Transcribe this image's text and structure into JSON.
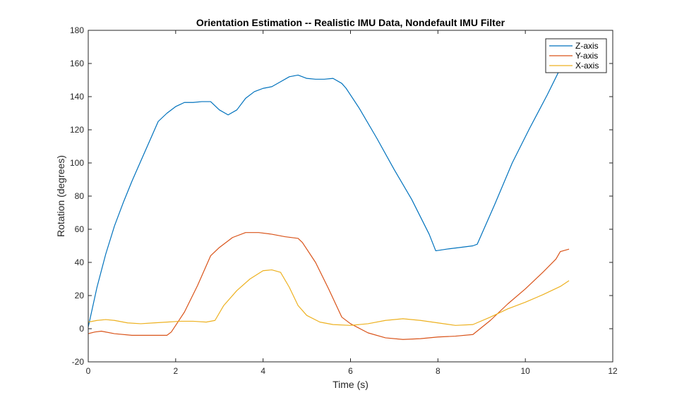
{
  "chart_data": {
    "type": "line",
    "title": "Orientation Estimation -- Realistic IMU Data, Nondefault IMU Filter",
    "xlabel": "Time (s)",
    "ylabel": "Rotation (degrees)",
    "xlim": [
      0,
      12
    ],
    "ylim": [
      -20,
      180
    ],
    "xticks": [
      0,
      2,
      4,
      6,
      8,
      10,
      12
    ],
    "yticks": [
      -20,
      0,
      20,
      40,
      60,
      80,
      100,
      120,
      140,
      160,
      180
    ],
    "grid": false,
    "legend_location": "top-right",
    "series": [
      {
        "name": "Z-axis",
        "color": "#0072BD",
        "x": [
          0,
          0.2,
          0.4,
          0.6,
          0.8,
          1.0,
          1.2,
          1.4,
          1.6,
          1.8,
          2.0,
          2.2,
          2.4,
          2.6,
          2.8,
          3.0,
          3.2,
          3.4,
          3.6,
          3.8,
          4.0,
          4.2,
          4.4,
          4.6,
          4.8,
          5.0,
          5.2,
          5.4,
          5.6,
          5.8,
          5.9,
          6.2,
          6.6,
          7.0,
          7.4,
          7.8,
          7.95,
          8.2,
          8.5,
          8.8,
          8.9,
          9.3,
          9.7,
          10.1,
          10.5,
          10.8,
          11.0
        ],
        "values": [
          1,
          25,
          45,
          62,
          76,
          89,
          101,
          113,
          125,
          130,
          134,
          136.5,
          136.5,
          137,
          137,
          132,
          129,
          132,
          139,
          143,
          145,
          146,
          149,
          152,
          153,
          151,
          150.5,
          150.5,
          151,
          148,
          145,
          133,
          115,
          96,
          78,
          57,
          47,
          48,
          49,
          50,
          51,
          75,
          100,
          121,
          141,
          157,
          164
        ]
      },
      {
        "name": "Y-axis",
        "color": "#D95319",
        "x": [
          0,
          0.15,
          0.3,
          0.6,
          1.0,
          1.4,
          1.8,
          1.9,
          2.2,
          2.5,
          2.8,
          3.0,
          3.3,
          3.6,
          3.9,
          4.2,
          4.5,
          4.8,
          4.9,
          5.2,
          5.5,
          5.8,
          6.0,
          6.4,
          6.8,
          7.2,
          7.6,
          8.0,
          8.4,
          8.8,
          9.2,
          9.6,
          10.0,
          10.4,
          10.7,
          10.8,
          11.0
        ],
        "values": [
          -3,
          -2,
          -1.5,
          -3,
          -4,
          -4,
          -4,
          -2,
          10,
          26,
          44,
          49,
          55,
          58,
          58,
          57,
          55.5,
          54.5,
          52,
          40,
          24,
          7,
          3,
          -2.5,
          -5.5,
          -6.5,
          -6,
          -5,
          -4.5,
          -3.5,
          5,
          15,
          24,
          34,
          42,
          46.5,
          48
        ]
      },
      {
        "name": "X-axis",
        "color": "#EDB120",
        "x": [
          0,
          0.2,
          0.4,
          0.6,
          0.9,
          1.2,
          1.5,
          1.8,
          2.1,
          2.4,
          2.7,
          2.9,
          3.1,
          3.4,
          3.7,
          4.0,
          4.2,
          4.4,
          4.6,
          4.8,
          5.0,
          5.3,
          5.6,
          6.0,
          6.4,
          6.8,
          7.2,
          7.6,
          8.0,
          8.4,
          8.8,
          9.2,
          9.6,
          10.0,
          10.4,
          10.8,
          11.0
        ],
        "values": [
          4,
          5,
          5.5,
          5,
          3.5,
          3,
          3.5,
          4,
          4.5,
          4.5,
          4,
          5,
          14,
          23,
          30,
          35,
          35.5,
          34,
          25,
          14,
          8,
          4,
          2.5,
          2,
          3,
          5,
          6,
          5,
          3.5,
          2,
          2.5,
          7,
          12,
          16,
          20.5,
          25.5,
          29
        ]
      }
    ]
  }
}
